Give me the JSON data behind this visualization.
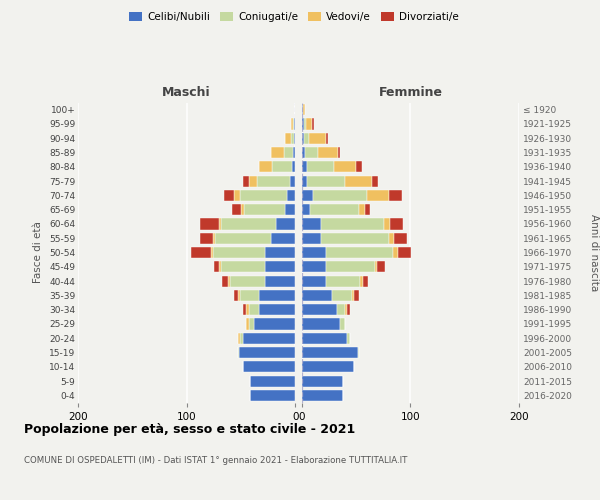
{
  "age_groups": [
    "0-4",
    "5-9",
    "10-14",
    "15-19",
    "20-24",
    "25-29",
    "30-34",
    "35-39",
    "40-44",
    "45-49",
    "50-54",
    "55-59",
    "60-64",
    "65-69",
    "70-74",
    "75-79",
    "80-84",
    "85-89",
    "90-94",
    "95-99",
    "100+"
  ],
  "birth_years": [
    "2016-2020",
    "2011-2015",
    "2006-2010",
    "2001-2005",
    "1996-2000",
    "1991-1995",
    "1986-1990",
    "1981-1985",
    "1976-1980",
    "1971-1975",
    "1966-1970",
    "1961-1965",
    "1956-1960",
    "1951-1955",
    "1946-1950",
    "1941-1945",
    "1936-1940",
    "1931-1935",
    "1926-1930",
    "1921-1925",
    "≤ 1920"
  ],
  "colors": {
    "celibi": "#4472c4",
    "coniugati": "#c5d9a0",
    "vedovi": "#f0c060",
    "divorziati": "#c0392b"
  },
  "maschi": {
    "celibi": [
      42,
      42,
      48,
      52,
      48,
      38,
      33,
      33,
      28,
      28,
      28,
      22,
      18,
      9,
      8,
      5,
      3,
      2,
      1,
      1,
      0
    ],
    "coniugati": [
      0,
      0,
      0,
      1,
      3,
      5,
      10,
      18,
      32,
      40,
      48,
      52,
      50,
      38,
      43,
      30,
      18,
      8,
      3,
      1,
      0
    ],
    "vedovi": [
      0,
      0,
      0,
      0,
      2,
      2,
      2,
      2,
      2,
      2,
      2,
      2,
      2,
      3,
      5,
      8,
      12,
      12,
      5,
      2,
      0
    ],
    "divorziati": [
      0,
      0,
      0,
      0,
      0,
      0,
      3,
      3,
      5,
      5,
      18,
      12,
      18,
      8,
      10,
      5,
      0,
      0,
      0,
      0,
      0
    ]
  },
  "femmine": {
    "celibi": [
      38,
      38,
      48,
      52,
      42,
      35,
      32,
      28,
      22,
      22,
      22,
      18,
      18,
      8,
      10,
      5,
      5,
      3,
      2,
      2,
      1
    ],
    "coniugati": [
      0,
      0,
      0,
      1,
      2,
      5,
      8,
      18,
      32,
      45,
      62,
      62,
      58,
      45,
      50,
      35,
      25,
      12,
      5,
      2,
      0
    ],
    "vedovi": [
      0,
      0,
      0,
      0,
      0,
      0,
      2,
      2,
      2,
      2,
      5,
      5,
      5,
      5,
      20,
      25,
      20,
      18,
      15,
      5,
      2
    ],
    "divorziati": [
      0,
      0,
      0,
      0,
      0,
      0,
      2,
      5,
      5,
      8,
      12,
      12,
      12,
      5,
      12,
      5,
      5,
      2,
      2,
      2,
      0
    ]
  },
  "title": "Popolazione per età, sesso e stato civile - 2021",
  "subtitle": "COMUNE DI OSPEDALETTI (IM) - Dati ISTAT 1° gennaio 2021 - Elaborazione TUTTITALIA.IT",
  "maschi_label": "Maschi",
  "femmine_label": "Femmine",
  "ylabel_left": "Fasce di età",
  "ylabel_right": "Anni di nascita",
  "xlim": 200,
  "legend_labels": [
    "Celibi/Nubili",
    "Coniugati/e",
    "Vedovi/e",
    "Divorziati/e"
  ],
  "background_color": "#f2f2ee",
  "bar_height": 0.78
}
